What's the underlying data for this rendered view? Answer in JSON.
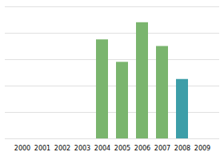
{
  "chart_data": {
    "type": "bar",
    "categories": [
      "2000",
      "2001",
      "2002",
      "2003",
      "2004",
      "2005",
      "2006",
      "2007",
      "2008",
      "2009"
    ],
    "values": [
      0,
      0,
      0,
      0,
      75,
      58,
      88,
      70,
      45,
      0
    ],
    "colors": [
      "#7ab56e",
      "#7ab56e",
      "#7ab56e",
      "#7ab56e",
      "#7ab56e",
      "#7ab56e",
      "#7ab56e",
      "#7ab56e",
      "#3d9ea8",
      "#7ab56e"
    ],
    "ylim": [
      0,
      100
    ],
    "yticks": [
      0,
      20,
      40,
      60,
      80,
      100
    ],
    "grid": true,
    "tick_labels": "x"
  }
}
